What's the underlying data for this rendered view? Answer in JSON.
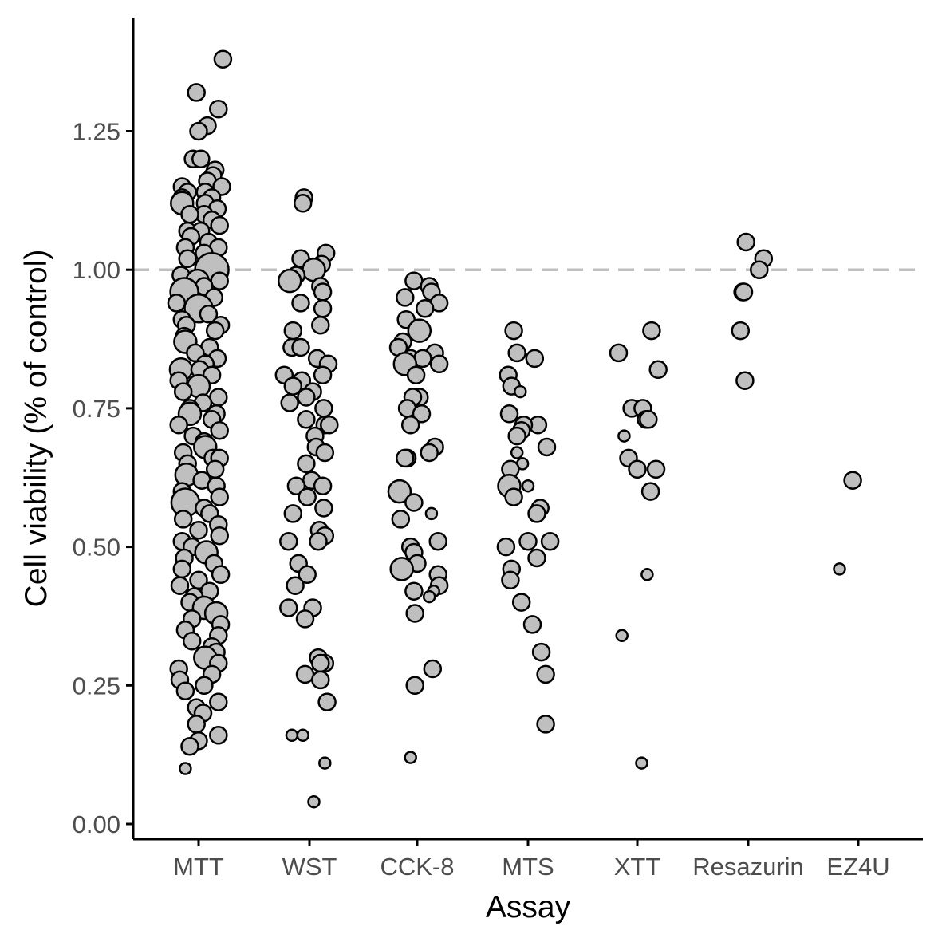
{
  "chart_data": {
    "type": "scatter",
    "title": "",
    "xlabel": "Assay",
    "ylabel": "Cell viability (% of control)",
    "categories": [
      "MTT",
      "WST",
      "CCK-8",
      "MTS",
      "XTT",
      "Resazurin",
      "EZ4U"
    ],
    "ylim": [
      -0.02,
      1.4
    ],
    "yticks": [
      "0.00",
      "0.25",
      "0.50",
      "0.75",
      "1.00",
      "1.25"
    ],
    "reference_line": {
      "y": 1.0,
      "style": "dashed",
      "color": "#bfbfbf"
    },
    "grid": false,
    "legend": "none",
    "point_fill": "#bfbfbf",
    "point_stroke": "#000000",
    "series": [
      {
        "category": "MTT",
        "y": [
          1.38,
          1.32,
          1.29,
          1.26,
          1.25,
          1.2,
          1.2,
          1.18,
          1.17,
          1.16,
          1.15,
          1.15,
          1.14,
          1.14,
          1.13,
          1.13,
          1.12,
          1.12,
          1.11,
          1.1,
          1.1,
          1.09,
          1.08,
          1.07,
          1.07,
          1.06,
          1.05,
          1.04,
          1.04,
          1.03,
          1.02,
          1.01,
          1.0,
          0.99,
          0.98,
          0.98,
          0.97,
          0.96,
          0.95,
          0.94,
          0.93,
          0.92,
          0.91,
          0.9,
          0.9,
          0.89,
          0.88,
          0.87,
          0.86,
          0.85,
          0.84,
          0.83,
          0.82,
          0.82,
          0.81,
          0.8,
          0.79,
          0.78,
          0.77,
          0.76,
          0.75,
          0.74,
          0.74,
          0.73,
          0.72,
          0.71,
          0.7,
          0.69,
          0.68,
          0.67,
          0.66,
          0.66,
          0.65,
          0.64,
          0.63,
          0.62,
          0.61,
          0.6,
          0.59,
          0.58,
          0.57,
          0.56,
          0.55,
          0.54,
          0.53,
          0.52,
          0.51,
          0.5,
          0.49,
          0.48,
          0.47,
          0.46,
          0.45,
          0.44,
          0.43,
          0.42,
          0.41,
          0.4,
          0.39,
          0.38,
          0.37,
          0.36,
          0.35,
          0.34,
          0.33,
          0.32,
          0.31,
          0.3,
          0.29,
          0.28,
          0.27,
          0.26,
          0.25,
          0.24,
          0.22,
          0.21,
          0.2,
          0.18,
          0.16,
          0.15,
          0.14,
          0.1
        ],
        "size": [
          2,
          2,
          2,
          2,
          2,
          2,
          2,
          2,
          2,
          2,
          2,
          2,
          2,
          2,
          2,
          2,
          3,
          2,
          2,
          2,
          2,
          2,
          2,
          2,
          2,
          2,
          2,
          2,
          2,
          2,
          2,
          2,
          5,
          2,
          3,
          2,
          2,
          4,
          2,
          2,
          4,
          2,
          2,
          2,
          2,
          2,
          2,
          3,
          2,
          2,
          2,
          2,
          3,
          2,
          2,
          2,
          3,
          2,
          2,
          2,
          2,
          3,
          2,
          2,
          2,
          2,
          2,
          2,
          3,
          2,
          2,
          2,
          2,
          2,
          3,
          2,
          2,
          2,
          2,
          4,
          2,
          2,
          2,
          2,
          2,
          2,
          2,
          2,
          3,
          2,
          2,
          2,
          2,
          2,
          2,
          2,
          2,
          2,
          3,
          3,
          2,
          2,
          2,
          2,
          2,
          2,
          2,
          3,
          2,
          2,
          2,
          2,
          2,
          2,
          2,
          2,
          2,
          2,
          2,
          2,
          2,
          1
        ],
        "jitter": [
          0.22,
          -0.02,
          0.18,
          0.08,
          0.0,
          -0.05,
          0.02,
          0.15,
          0.13,
          0.08,
          -0.15,
          0.21,
          0.06,
          -0.1,
          0.12,
          -0.15,
          -0.15,
          0.06,
          0.17,
          0.05,
          -0.08,
          0.12,
          0.19,
          -0.1,
          0.02,
          -0.07,
          0.09,
          0.18,
          -0.12,
          0.05,
          -0.1,
          0.11,
          0.12,
          -0.16,
          -0.01,
          0.19,
          0.05,
          -0.13,
          0.14,
          -0.2,
          0.0,
          0.09,
          -0.15,
          0.2,
          -0.11,
          0.15,
          -0.13,
          -0.12,
          0.1,
          -0.03,
          0.17,
          0.06,
          -0.16,
          0.01,
          0.12,
          -0.18,
          0.0,
          -0.14,
          0.18,
          0.04,
          -0.08,
          -0.08,
          0.16,
          0.12,
          -0.18,
          0.19,
          -0.05,
          0.05,
          0.06,
          -0.14,
          0.13,
          0.19,
          -0.1,
          0.15,
          -0.11,
          0.03,
          0.16,
          -0.15,
          0.19,
          -0.12,
          0.05,
          0.1,
          -0.14,
          0.18,
          0.0,
          0.19,
          -0.15,
          -0.06,
          0.07,
          -0.13,
          0.14,
          -0.15,
          0.2,
          0.0,
          -0.17,
          0.1,
          -0.04,
          -0.08,
          0.05,
          0.16,
          -0.06,
          0.2,
          -0.12,
          0.18,
          -0.06,
          0.12,
          0.16,
          0.06,
          0.18,
          -0.18,
          0.12,
          -0.17,
          0.05,
          -0.12,
          0.18,
          -0.02,
          0.04,
          -0.02,
          0.18,
          0.0,
          -0.08,
          -0.12
        ]
      },
      {
        "category": "WST",
        "y": [
          1.13,
          1.12,
          1.03,
          1.02,
          1.01,
          1.0,
          0.99,
          0.98,
          0.97,
          0.96,
          0.94,
          0.93,
          0.9,
          0.89,
          0.86,
          0.86,
          0.84,
          0.83,
          0.81,
          0.81,
          0.8,
          0.79,
          0.78,
          0.77,
          0.76,
          0.75,
          0.73,
          0.72,
          0.72,
          0.7,
          0.68,
          0.67,
          0.65,
          0.62,
          0.61,
          0.61,
          0.59,
          0.57,
          0.56,
          0.53,
          0.52,
          0.51,
          0.51,
          0.47,
          0.45,
          0.43,
          0.39,
          0.39,
          0.37,
          0.3,
          0.29,
          0.29,
          0.27,
          0.26,
          0.22,
          0.16,
          0.16,
          0.11,
          0.04
        ],
        "size": [
          2,
          2,
          2,
          2,
          2,
          3,
          2,
          3,
          2,
          2,
          2,
          2,
          2,
          2,
          2,
          2,
          2,
          2,
          2,
          2,
          2,
          2,
          2,
          2,
          2,
          2,
          2,
          2,
          2,
          2,
          2,
          2,
          2,
          2,
          2,
          2,
          2,
          2,
          2,
          2,
          2,
          2,
          2,
          2,
          2,
          2,
          2,
          2,
          2,
          2,
          2,
          2,
          2,
          2,
          2,
          1,
          1,
          1,
          1
        ],
        "jitter": [
          -0.05,
          -0.06,
          0.15,
          -0.08,
          0.11,
          0.04,
          -0.12,
          -0.18,
          0.1,
          0.12,
          -0.08,
          0.12,
          0.1,
          -0.15,
          -0.16,
          -0.08,
          0.07,
          0.17,
          0.12,
          -0.23,
          -0.07,
          -0.15,
          0.03,
          -0.03,
          -0.18,
          0.13,
          -0.03,
          0.14,
          0.18,
          0.05,
          0.06,
          0.14,
          -0.03,
          0.02,
          -0.12,
          0.12,
          -0.02,
          0.13,
          -0.15,
          0.09,
          0.14,
          -0.19,
          0.08,
          -0.1,
          -0.02,
          -0.13,
          -0.19,
          0.03,
          -0.04,
          0.08,
          0.14,
          0.1,
          -0.04,
          0.1,
          0.16,
          -0.16,
          -0.06,
          0.14,
          0.04
        ]
      },
      {
        "category": "CCK-8",
        "y": [
          0.98,
          0.97,
          0.96,
          0.95,
          0.94,
          0.93,
          0.91,
          0.89,
          0.87,
          0.86,
          0.85,
          0.84,
          0.84,
          0.83,
          0.83,
          0.81,
          0.77,
          0.77,
          0.75,
          0.74,
          0.72,
          0.68,
          0.67,
          0.66,
          0.66,
          0.6,
          0.58,
          0.56,
          0.55,
          0.51,
          0.5,
          0.49,
          0.47,
          0.46,
          0.45,
          0.43,
          0.42,
          0.42,
          0.41,
          0.38,
          0.28,
          0.25,
          0.12
        ],
        "size": [
          2,
          2,
          2,
          2,
          2,
          2,
          2,
          3,
          2,
          2,
          2,
          2,
          2,
          2,
          3,
          2,
          2,
          2,
          2,
          2,
          2,
          2,
          2,
          2,
          2,
          3,
          2,
          1,
          2,
          2,
          2,
          2,
          2,
          3,
          2,
          2,
          2,
          1,
          1,
          2,
          2,
          2,
          1
        ],
        "jitter": [
          -0.03,
          0.11,
          0.13,
          -0.11,
          0.2,
          0.07,
          -0.1,
          0.02,
          -0.13,
          -0.17,
          0.16,
          -0.06,
          0.05,
          0.2,
          -0.11,
          -0.01,
          0.02,
          -0.04,
          -0.09,
          0.04,
          -0.06,
          0.16,
          0.11,
          -0.09,
          -0.11,
          -0.16,
          -0.03,
          0.13,
          -0.15,
          0.19,
          -0.06,
          -0.03,
          0.0,
          -0.14,
          0.19,
          0.2,
          -0.03,
          0.15,
          0.11,
          -0.02,
          0.14,
          -0.02,
          -0.06
        ]
      },
      {
        "category": "MTS",
        "y": [
          0.89,
          0.85,
          0.84,
          0.81,
          0.79,
          0.78,
          0.74,
          0.72,
          0.72,
          0.71,
          0.7,
          0.68,
          0.67,
          0.65,
          0.64,
          0.61,
          0.61,
          0.59,
          0.57,
          0.56,
          0.51,
          0.51,
          0.5,
          0.48,
          0.46,
          0.44,
          0.4,
          0.36,
          0.31,
          0.27,
          0.18
        ],
        "size": [
          2,
          2,
          2,
          2,
          2,
          1,
          2,
          2,
          2,
          2,
          2,
          2,
          1,
          1,
          2,
          1,
          3,
          2,
          2,
          2,
          2,
          2,
          2,
          2,
          2,
          2,
          2,
          2,
          2,
          2,
          2
        ],
        "jitter": [
          -0.13,
          -0.1,
          0.06,
          -0.18,
          -0.15,
          -0.07,
          -0.17,
          0.09,
          -0.04,
          -0.06,
          -0.1,
          0.17,
          -0.1,
          -0.05,
          -0.16,
          0.0,
          -0.17,
          -0.13,
          0.11,
          0.08,
          0.2,
          0.0,
          -0.2,
          0.08,
          -0.15,
          -0.16,
          -0.06,
          0.04,
          0.12,
          0.16,
          0.16
        ]
      },
      {
        "category": "XTT",
        "y": [
          0.89,
          0.85,
          0.82,
          0.75,
          0.75,
          0.73,
          0.73,
          0.7,
          0.66,
          0.64,
          0.64,
          0.6,
          0.45,
          0.34,
          0.11
        ],
        "size": [
          2,
          2,
          2,
          2,
          2,
          2,
          2,
          1,
          2,
          2,
          2,
          2,
          1,
          1,
          1
        ],
        "jitter": [
          0.13,
          -0.17,
          0.19,
          -0.05,
          0.05,
          0.08,
          0.1,
          -0.12,
          -0.08,
          0.0,
          0.17,
          0.12,
          0.09,
          -0.14,
          0.04
        ]
      },
      {
        "category": "Resazurin",
        "y": [
          1.05,
          1.02,
          1.0,
          0.96,
          0.96,
          0.89,
          0.8
        ],
        "size": [
          2,
          2,
          2,
          2,
          2,
          2,
          2
        ],
        "jitter": [
          -0.02,
          0.14,
          0.1,
          -0.05,
          -0.04,
          -0.07,
          -0.03
        ]
      },
      {
        "category": "EZ4U",
        "y": [
          0.62,
          0.46
        ],
        "size": [
          2,
          1
        ],
        "jitter": [
          -0.05,
          -0.17
        ]
      }
    ]
  }
}
